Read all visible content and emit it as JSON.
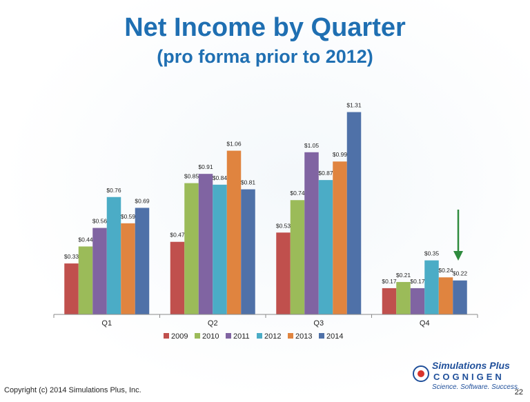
{
  "slide": {
    "title": "Net Income by Quarter",
    "subtitle": "(pro forma prior to 2012)",
    "copyright": "Copyright (c) 2014 Simulations Plus, Inc.",
    "page_number": "22"
  },
  "logo": {
    "line1": "Simulations Plus",
    "line2": "COGNIGEN",
    "line3": "Science. Software. Success."
  },
  "colors": {
    "title": "#1f6fb2",
    "arrow": "#2e8b3e"
  },
  "chart_data": {
    "type": "bar",
    "title": "",
    "xlabel": "",
    "ylabel": "",
    "categories": [
      "Q1",
      "Q2",
      "Q3",
      "Q4"
    ],
    "ylim": [
      0,
      1.5
    ],
    "grid": false,
    "legend_position": "bottom",
    "series": [
      {
        "name": "2009",
        "color": "#c0504d",
        "values": [
          0.33,
          0.47,
          0.53,
          0.17
        ],
        "labels": [
          "$0.33",
          "$0.47",
          "$0.53",
          "$0.17"
        ]
      },
      {
        "name": "2010",
        "color": "#9bbb59",
        "values": [
          0.44,
          0.85,
          0.74,
          0.21
        ],
        "labels": [
          "$0.44",
          "$0.85",
          "$0.74",
          "$0.21"
        ]
      },
      {
        "name": "2011",
        "color": "#8064a2",
        "values": [
          0.56,
          0.91,
          1.05,
          0.17
        ],
        "labels": [
          "$0.56",
          "$0.91",
          "$1.05",
          "$0.17"
        ]
      },
      {
        "name": "2012",
        "color": "#4bacc6",
        "values": [
          0.76,
          0.84,
          0.87,
          0.35
        ],
        "labels": [
          "$0.76",
          "$0.84",
          "$0.87",
          "$0.35"
        ]
      },
      {
        "name": "2013",
        "color": "#e0843f",
        "values": [
          0.59,
          1.06,
          0.99,
          0.24
        ],
        "labels": [
          "$0.59",
          "$1.06",
          "$0.99",
          "$0.24"
        ]
      },
      {
        "name": "2014",
        "color": "#4f71a8",
        "values": [
          0.69,
          0.81,
          1.31,
          0.22
        ],
        "labels": [
          "$0.69",
          "$0.81",
          "$1.31",
          "$0.22"
        ]
      }
    ],
    "annotation": {
      "type": "arrow-down",
      "target_category": "Q4"
    }
  }
}
